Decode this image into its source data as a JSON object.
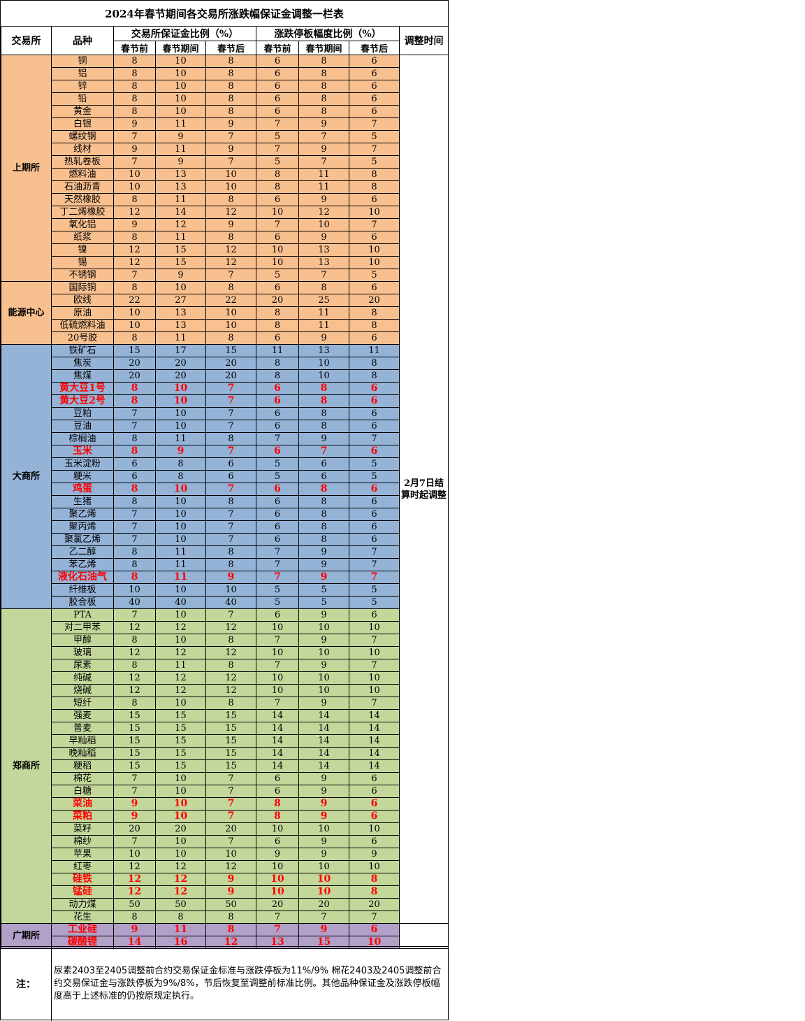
{
  "title": "2024年春节期间各交易所涨跌幅保证金调整一栏表",
  "headers": {
    "exchange": "交易所",
    "variety": "品种",
    "margin_group": "交易所保证金比例（%）",
    "limit_group": "涨跌停板幅度比例（%）",
    "adjust_time": "调整时间",
    "before": "春节前",
    "during": "春节期间",
    "after": "春节后"
  },
  "adjust_time_value": "2月7日结算时起调整",
  "colors": {
    "shfe": "#f9c08f",
    "dce": "#95b3d7",
    "czce": "#c4d79b",
    "gfex": "#b1a0c7",
    "highlight": "#ff0000"
  },
  "groups": [
    {
      "exchange": "上期所",
      "color": "shfe",
      "rows": [
        {
          "name": "铜",
          "m": [
            "8",
            "10",
            "8"
          ],
          "l": [
            "6",
            "8",
            "6"
          ],
          "hl": false
        },
        {
          "name": "铝",
          "m": [
            "8",
            "10",
            "8"
          ],
          "l": [
            "6",
            "8",
            "6"
          ],
          "hl": false
        },
        {
          "name": "锌",
          "m": [
            "8",
            "10",
            "8"
          ],
          "l": [
            "6",
            "8",
            "6"
          ],
          "hl": false
        },
        {
          "name": "铅",
          "m": [
            "8",
            "10",
            "8"
          ],
          "l": [
            "6",
            "8",
            "6"
          ],
          "hl": false
        },
        {
          "name": "黄金",
          "m": [
            "8",
            "10",
            "8"
          ],
          "l": [
            "6",
            "8",
            "6"
          ],
          "hl": false
        },
        {
          "name": "白银",
          "m": [
            "9",
            "11",
            "9"
          ],
          "l": [
            "7",
            "9",
            "7"
          ],
          "hl": false
        },
        {
          "name": "螺纹钢",
          "m": [
            "7",
            "9",
            "7"
          ],
          "l": [
            "5",
            "7",
            "5"
          ],
          "hl": false
        },
        {
          "name": "线材",
          "m": [
            "9",
            "11",
            "9"
          ],
          "l": [
            "7",
            "9",
            "7"
          ],
          "hl": false
        },
        {
          "name": "热轧卷板",
          "m": [
            "7",
            "9",
            "7"
          ],
          "l": [
            "5",
            "7",
            "5"
          ],
          "hl": false
        },
        {
          "name": "燃料油",
          "m": [
            "10",
            "13",
            "10"
          ],
          "l": [
            "8",
            "11",
            "8"
          ],
          "hl": false
        },
        {
          "name": "石油沥青",
          "m": [
            "10",
            "13",
            "10"
          ],
          "l": [
            "8",
            "11",
            "8"
          ],
          "hl": false
        },
        {
          "name": "天然橡胶",
          "m": [
            "8",
            "11",
            "8"
          ],
          "l": [
            "6",
            "9",
            "6"
          ],
          "hl": false
        },
        {
          "name": "丁二烯橡胶",
          "m": [
            "12",
            "14",
            "12"
          ],
          "l": [
            "10",
            "12",
            "10"
          ],
          "hl": false
        },
        {
          "name": "氧化铝",
          "m": [
            "9",
            "12",
            "9"
          ],
          "l": [
            "7",
            "10",
            "7"
          ],
          "hl": false
        },
        {
          "name": "纸浆",
          "m": [
            "8",
            "11",
            "8"
          ],
          "l": [
            "6",
            "9",
            "6"
          ],
          "hl": false
        },
        {
          "name": "镍",
          "m": [
            "12",
            "15",
            "12"
          ],
          "l": [
            "10",
            "13",
            "10"
          ],
          "hl": false
        },
        {
          "name": "锡",
          "m": [
            "12",
            "15",
            "12"
          ],
          "l": [
            "10",
            "13",
            "10"
          ],
          "hl": false
        },
        {
          "name": "不锈钢",
          "m": [
            "7",
            "9",
            "7"
          ],
          "l": [
            "5",
            "7",
            "5"
          ],
          "hl": false
        }
      ]
    },
    {
      "exchange": "能源中心",
      "color": "shfe",
      "rows": [
        {
          "name": "国际铜",
          "m": [
            "8",
            "10",
            "8"
          ],
          "l": [
            "6",
            "8",
            "6"
          ],
          "hl": false
        },
        {
          "name": "欧线",
          "m": [
            "22",
            "27",
            "22"
          ],
          "l": [
            "20",
            "25",
            "20"
          ],
          "hl": false
        },
        {
          "name": "原油",
          "m": [
            "10",
            "13",
            "10"
          ],
          "l": [
            "8",
            "11",
            "8"
          ],
          "hl": false
        },
        {
          "name": "低硫燃料油",
          "m": [
            "10",
            "13",
            "10"
          ],
          "l": [
            "8",
            "11",
            "8"
          ],
          "hl": false
        },
        {
          "name": "20号胶",
          "m": [
            "8",
            "11",
            "8"
          ],
          "l": [
            "6",
            "9",
            "6"
          ],
          "hl": false
        }
      ]
    },
    {
      "exchange": "大商所",
      "color": "dce",
      "rows": [
        {
          "name": "铁矿石",
          "m": [
            "15",
            "17",
            "15"
          ],
          "l": [
            "11",
            "13",
            "11"
          ],
          "hl": false
        },
        {
          "name": "焦炭",
          "m": [
            "20",
            "20",
            "20"
          ],
          "l": [
            "8",
            "10",
            "8"
          ],
          "hl": false
        },
        {
          "name": "焦煤",
          "m": [
            "20",
            "20",
            "20"
          ],
          "l": [
            "8",
            "10",
            "8"
          ],
          "hl": false
        },
        {
          "name": "黄大豆1号",
          "m": [
            "8",
            "10",
            "7"
          ],
          "l": [
            "6",
            "8",
            "6"
          ],
          "hl": true
        },
        {
          "name": "黄大豆2号",
          "m": [
            "8",
            "10",
            "7"
          ],
          "l": [
            "6",
            "8",
            "6"
          ],
          "hl": true
        },
        {
          "name": "豆粕",
          "m": [
            "7",
            "10",
            "7"
          ],
          "l": [
            "6",
            "8",
            "6"
          ],
          "hl": false
        },
        {
          "name": "豆油",
          "m": [
            "7",
            "10",
            "7"
          ],
          "l": [
            "6",
            "8",
            "6"
          ],
          "hl": false
        },
        {
          "name": "棕榈油",
          "m": [
            "8",
            "11",
            "8"
          ],
          "l": [
            "7",
            "9",
            "7"
          ],
          "hl": false
        },
        {
          "name": "玉米",
          "m": [
            "8",
            "9",
            "7"
          ],
          "l": [
            "6",
            "7",
            "6"
          ],
          "hl": true
        },
        {
          "name": "玉米淀粉",
          "m": [
            "6",
            "8",
            "6"
          ],
          "l": [
            "5",
            "6",
            "5"
          ],
          "hl": false
        },
        {
          "name": "粳米",
          "m": [
            "6",
            "8",
            "6"
          ],
          "l": [
            "5",
            "6",
            "5"
          ],
          "hl": false
        },
        {
          "name": "鸡蛋",
          "m": [
            "8",
            "10",
            "7"
          ],
          "l": [
            "6",
            "8",
            "6"
          ],
          "hl": true
        },
        {
          "name": "生猪",
          "m": [
            "8",
            "10",
            "8"
          ],
          "l": [
            "6",
            "8",
            "6"
          ],
          "hl": false
        },
        {
          "name": "聚乙烯",
          "m": [
            "7",
            "10",
            "7"
          ],
          "l": [
            "6",
            "8",
            "6"
          ],
          "hl": false
        },
        {
          "name": "聚丙烯",
          "m": [
            "7",
            "10",
            "7"
          ],
          "l": [
            "6",
            "8",
            "6"
          ],
          "hl": false
        },
        {
          "name": "聚氯乙烯",
          "m": [
            "7",
            "10",
            "7"
          ],
          "l": [
            "6",
            "8",
            "6"
          ],
          "hl": false
        },
        {
          "name": "乙二醇",
          "m": [
            "8",
            "11",
            "8"
          ],
          "l": [
            "7",
            "9",
            "7"
          ],
          "hl": false
        },
        {
          "name": "苯乙烯",
          "m": [
            "8",
            "11",
            "8"
          ],
          "l": [
            "7",
            "9",
            "7"
          ],
          "hl": false
        },
        {
          "name": "液化石油气",
          "m": [
            "8",
            "11",
            "9"
          ],
          "l": [
            "7",
            "9",
            "7"
          ],
          "hl": true
        },
        {
          "name": "纤维板",
          "m": [
            "10",
            "10",
            "10"
          ],
          "l": [
            "5",
            "5",
            "5"
          ],
          "hl": false
        },
        {
          "name": "胶合板",
          "m": [
            "40",
            "40",
            "40"
          ],
          "l": [
            "5",
            "5",
            "5"
          ],
          "hl": false
        }
      ]
    },
    {
      "exchange": "郑商所",
      "color": "czce",
      "rows": [
        {
          "name": "PTA",
          "m": [
            "7",
            "10",
            "7"
          ],
          "l": [
            "6",
            "9",
            "6"
          ],
          "hl": false
        },
        {
          "name": "对二甲苯",
          "m": [
            "12",
            "12",
            "12"
          ],
          "l": [
            "10",
            "10",
            "10"
          ],
          "hl": false
        },
        {
          "name": "甲醇",
          "m": [
            "8",
            "10",
            "8"
          ],
          "l": [
            "7",
            "9",
            "7"
          ],
          "hl": false
        },
        {
          "name": "玻璃",
          "m": [
            "12",
            "12",
            "12"
          ],
          "l": [
            "10",
            "10",
            "10"
          ],
          "hl": false
        },
        {
          "name": "尿素",
          "m": [
            "8",
            "11",
            "8"
          ],
          "l": [
            "7",
            "9",
            "7"
          ],
          "hl": false
        },
        {
          "name": "纯碱",
          "m": [
            "12",
            "12",
            "12"
          ],
          "l": [
            "10",
            "10",
            "10"
          ],
          "hl": false
        },
        {
          "name": "烧碱",
          "m": [
            "12",
            "12",
            "12"
          ],
          "l": [
            "10",
            "10",
            "10"
          ],
          "hl": false
        },
        {
          "name": "短纤",
          "m": [
            "8",
            "10",
            "8"
          ],
          "l": [
            "7",
            "9",
            "7"
          ],
          "hl": false
        },
        {
          "name": "强麦",
          "m": [
            "15",
            "15",
            "15"
          ],
          "l": [
            "14",
            "14",
            "14"
          ],
          "hl": false
        },
        {
          "name": "普麦",
          "m": [
            "15",
            "15",
            "15"
          ],
          "l": [
            "14",
            "14",
            "14"
          ],
          "hl": false
        },
        {
          "name": "早籼稻",
          "m": [
            "15",
            "15",
            "15"
          ],
          "l": [
            "14",
            "14",
            "14"
          ],
          "hl": false
        },
        {
          "name": "晚籼稻",
          "m": [
            "15",
            "15",
            "15"
          ],
          "l": [
            "14",
            "14",
            "14"
          ],
          "hl": false
        },
        {
          "name": "粳稻",
          "m": [
            "15",
            "15",
            "15"
          ],
          "l": [
            "14",
            "14",
            "14"
          ],
          "hl": false
        },
        {
          "name": "棉花",
          "m": [
            "7",
            "10",
            "7"
          ],
          "l": [
            "6",
            "9",
            "6"
          ],
          "hl": false
        },
        {
          "name": "白糖",
          "m": [
            "7",
            "10",
            "7"
          ],
          "l": [
            "6",
            "9",
            "6"
          ],
          "hl": false
        },
        {
          "name": "菜油",
          "m": [
            "9",
            "10",
            "7"
          ],
          "l": [
            "8",
            "9",
            "6"
          ],
          "hl": true
        },
        {
          "name": "菜粕",
          "m": [
            "9",
            "10",
            "7"
          ],
          "l": [
            "8",
            "9",
            "6"
          ],
          "hl": true
        },
        {
          "name": "菜籽",
          "m": [
            "20",
            "20",
            "20"
          ],
          "l": [
            "10",
            "10",
            "10"
          ],
          "hl": false
        },
        {
          "name": "棉纱",
          "m": [
            "7",
            "10",
            "7"
          ],
          "l": [
            "6",
            "9",
            "6"
          ],
          "hl": false
        },
        {
          "name": "苹果",
          "m": [
            "10",
            "10",
            "10"
          ],
          "l": [
            "9",
            "9",
            "9"
          ],
          "hl": false
        },
        {
          "name": "红枣",
          "m": [
            "12",
            "12",
            "12"
          ],
          "l": [
            "10",
            "10",
            "10"
          ],
          "hl": false
        },
        {
          "name": "硅铁",
          "m": [
            "12",
            "12",
            "9"
          ],
          "l": [
            "10",
            "10",
            "8"
          ],
          "hl": true
        },
        {
          "name": "锰硅",
          "m": [
            "12",
            "12",
            "9"
          ],
          "l": [
            "10",
            "10",
            "8"
          ],
          "hl": true
        },
        {
          "name": "动力煤",
          "m": [
            "50",
            "50",
            "50"
          ],
          "l": [
            "20",
            "20",
            "20"
          ],
          "hl": false
        },
        {
          "name": "花生",
          "m": [
            "8",
            "8",
            "8"
          ],
          "l": [
            "7",
            "7",
            "7"
          ],
          "hl": false
        }
      ]
    },
    {
      "exchange": "广期所",
      "color": "gfex",
      "rows": [
        {
          "name": "工业硅",
          "m": [
            "9",
            "11",
            "8"
          ],
          "l": [
            "7",
            "9",
            "6"
          ],
          "hl": true
        },
        {
          "name": "碳酸锂",
          "m": [
            "14",
            "16",
            "12"
          ],
          "l": [
            "13",
            "15",
            "10"
          ],
          "hl": true
        }
      ]
    }
  ],
  "note": {
    "label": "注：",
    "text": "尿素2403至2405调整前合约交易保证金标准与涨跌停板为11%/9% 棉花2403及2405调整前合约交易保证金与涨跌停板为9%/8%，节后恢复至调整前标准比例。其他品种保证金及涨跌停板幅度高于上述标准的仍按原规定执行。"
  }
}
